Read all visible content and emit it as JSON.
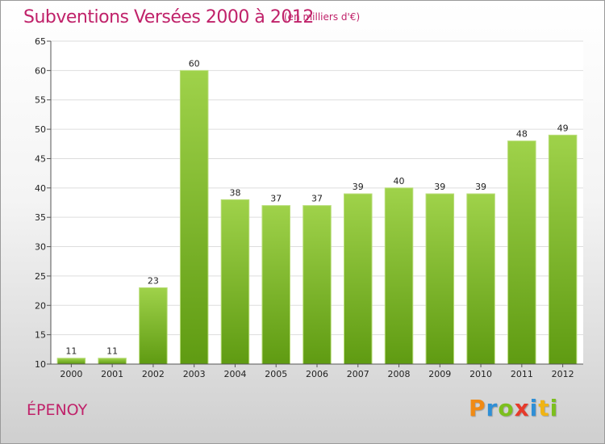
{
  "header": {
    "title": "Subventions Versées 2000 à 2012",
    "unit": "(en milliers d'€)"
  },
  "footer": {
    "commune": "ÉPENOY",
    "brand_letters": [
      "P",
      "r",
      "o",
      "x",
      "i",
      "t",
      "i"
    ]
  },
  "colors": {
    "accent": "#c0226a",
    "bar_top": "#9fd24a",
    "bar_bottom": "#5f9b12",
    "grid": "#dddddd",
    "brand_letter_colors": [
      "#f08a14",
      "#2f8fd6",
      "#7cbf1e",
      "#e63a2b",
      "#2f8fd6",
      "#f0b414",
      "#7cbf1e"
    ]
  },
  "chart_data": {
    "type": "bar",
    "title": "Subventions Versées 2000 à 2012",
    "subtitle": "(en milliers d'€)",
    "xlabel": "",
    "ylabel": "",
    "categories": [
      "2000",
      "2001",
      "2002",
      "2003",
      "2004",
      "2005",
      "2006",
      "2007",
      "2008",
      "2009",
      "2010",
      "2011",
      "2012"
    ],
    "values": [
      11,
      11,
      23,
      60,
      38,
      37,
      37,
      39,
      40,
      39,
      39,
      48,
      49
    ],
    "ylim": [
      10,
      65
    ],
    "yticks": [
      10,
      15,
      20,
      25,
      30,
      35,
      40,
      45,
      50,
      55,
      60,
      65
    ],
    "grid": true,
    "legend": "none"
  }
}
